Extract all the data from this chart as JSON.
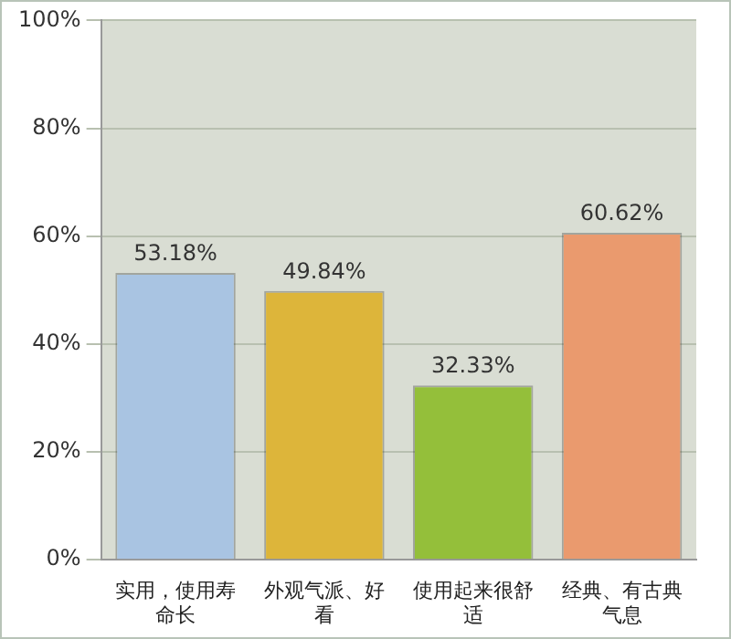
{
  "chart_data": {
    "type": "bar",
    "categories": [
      "实用，使用寿命长",
      "外观气派、好看",
      "使用起来很舒适",
      "经典、有古典气息"
    ],
    "values": [
      53.18,
      49.84,
      32.33,
      60.62
    ],
    "colors": [
      "#a9c4e2",
      "#ddb53a",
      "#94bf3a",
      "#ea9a6e"
    ],
    "value_labels": [
      "53.18%",
      "49.84%",
      "32.33%",
      "60.62%"
    ],
    "ylim": [
      0,
      100
    ],
    "yticks": [
      {
        "value": 0,
        "label": "0%"
      },
      {
        "value": 20,
        "label": "20%"
      },
      {
        "value": 40,
        "label": "40%"
      },
      {
        "value": 60,
        "label": "60%"
      },
      {
        "value": 80,
        "label": "80%"
      },
      {
        "value": 100,
        "label": "100%"
      }
    ],
    "grid": "y",
    "legend": false
  }
}
